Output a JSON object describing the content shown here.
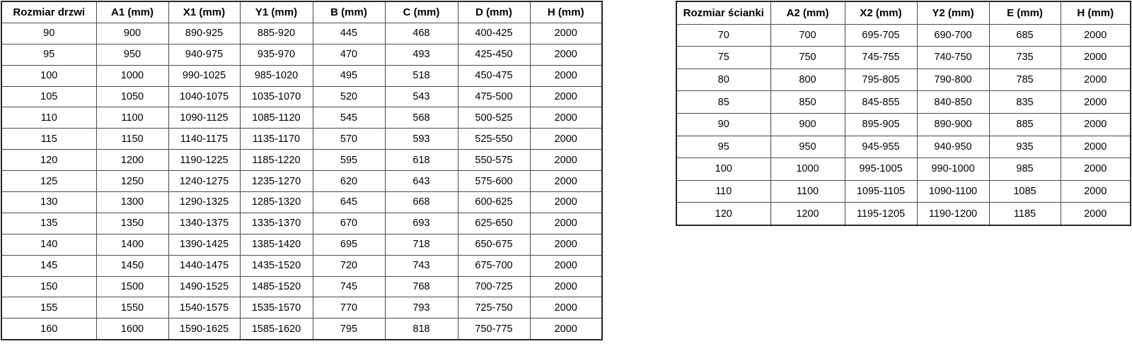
{
  "page": {
    "background": "#ffffff",
    "text_color": "#000000",
    "border_color": "#262626"
  },
  "tables": {
    "doors": {
      "title": "Rozmiar drzwi",
      "headers": [
        "Rozmiar drzwi",
        "A1 (mm)",
        "X1 (mm)",
        "Y1 (mm)",
        "B (mm)",
        "C (mm)",
        "D (mm)",
        "H (mm)"
      ],
      "rows": [
        [
          "90",
          "900",
          "890-925",
          "885-920",
          "445",
          "468",
          "400-425",
          "2000"
        ],
        [
          "95",
          "950",
          "940-975",
          "935-970",
          "470",
          "493",
          "425-450",
          "2000"
        ],
        [
          "100",
          "1000",
          "990-1025",
          "985-1020",
          "495",
          "518",
          "450-475",
          "2000"
        ],
        [
          "105",
          "1050",
          "1040-1075",
          "1035-1070",
          "520",
          "543",
          "475-500",
          "2000"
        ],
        [
          "110",
          "1100",
          "1090-1125",
          "1085-1120",
          "545",
          "568",
          "500-525",
          "2000"
        ],
        [
          "115",
          "1150",
          "1140-1175",
          "1135-1170",
          "570",
          "593",
          "525-550",
          "2000"
        ],
        [
          "120",
          "1200",
          "1190-1225",
          "1185-1220",
          "595",
          "618",
          "550-575",
          "2000"
        ],
        [
          "125",
          "1250",
          "1240-1275",
          "1235-1270",
          "620",
          "643",
          "575-600",
          "2000"
        ],
        [
          "130",
          "1300",
          "1290-1325",
          "1285-1320",
          "645",
          "668",
          "600-625",
          "2000"
        ],
        [
          "135",
          "1350",
          "1340-1375",
          "1335-1370",
          "670",
          "693",
          "625-650",
          "2000"
        ],
        [
          "140",
          "1400",
          "1390-1425",
          "1385-1420",
          "695",
          "718",
          "650-675",
          "2000"
        ],
        [
          "145",
          "1450",
          "1440-1475",
          "1435-1520",
          "720",
          "743",
          "675-700",
          "2000"
        ],
        [
          "150",
          "1500",
          "1490-1525",
          "1485-1520",
          "745",
          "768",
          "700-725",
          "2000"
        ],
        [
          "155",
          "1550",
          "1540-1575",
          "1535-1570",
          "770",
          "793",
          "725-750",
          "2000"
        ],
        [
          "160",
          "1600",
          "1590-1625",
          "1585-1620",
          "795",
          "818",
          "750-775",
          "2000"
        ]
      ]
    },
    "walls": {
      "title": "Rozmiar ścianki",
      "headers": [
        "Rozmiar ścianki",
        "A2 (mm)",
        "X2 (mm)",
        "Y2 (mm)",
        "E (mm)",
        "H (mm)"
      ],
      "rows": [
        [
          "70",
          "700",
          "695-705",
          "690-700",
          "685",
          "2000"
        ],
        [
          "75",
          "750",
          "745-755",
          "740-750",
          "735",
          "2000"
        ],
        [
          "80",
          "800",
          "795-805",
          "790-800",
          "785",
          "2000"
        ],
        [
          "85",
          "850",
          "845-855",
          "840-850",
          "835",
          "2000"
        ],
        [
          "90",
          "900",
          "895-905",
          "890-900",
          "885",
          "2000"
        ],
        [
          "95",
          "950",
          "945-955",
          "940-950",
          "935",
          "2000"
        ],
        [
          "100",
          "1000",
          "995-1005",
          "990-1000",
          "985",
          "2000"
        ],
        [
          "110",
          "1100",
          "1095-1105",
          "1090-1100",
          "1085",
          "2000"
        ],
        [
          "120",
          "1200",
          "1195-1205",
          "1190-1200",
          "1185",
          "2000"
        ]
      ]
    }
  }
}
